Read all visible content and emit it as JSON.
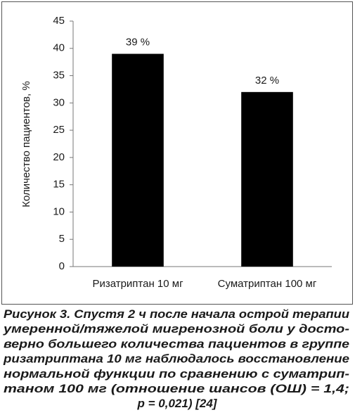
{
  "chart_data": {
    "type": "bar",
    "y_label": "Количество пациентов, %",
    "categories": [
      "Ризатриптан 10 мг",
      "Суматриптан 100 мг"
    ],
    "values": [
      39,
      32
    ],
    "value_labels": [
      "39 %",
      "32 %"
    ],
    "color": "#000000",
    "ylim": [
      0,
      45
    ],
    "yticks": [
      0,
      5,
      10,
      15,
      20,
      25,
      30,
      35,
      40,
      45
    ],
    "grid": false,
    "caption": [
      "Рисунок 3. Спустя 2 ч после начала острой терапии",
      "умеренной/тяжелой мигренозной боли у досто-",
      "верно большего количества пациентов в группе",
      "ризатриптана 10 мг наблюдалось восстановление",
      "нормальной функции по сравнению с суматрип-",
      "таном 100 мг (отношение шансов (ОШ) = 1,4;",
      "р = 0,021) [24]"
    ]
  }
}
